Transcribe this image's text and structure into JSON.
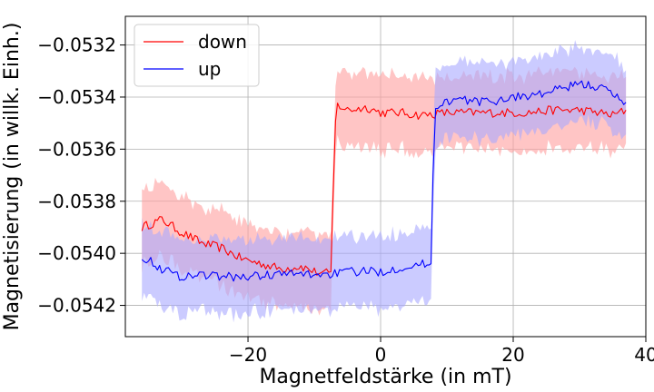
{
  "chart_data": {
    "type": "line",
    "xlabel": "Magnetfeldstärke (in  mT)",
    "ylabel": "Magnetisierung (in willk. Einh.)",
    "xlim": [
      -38.5,
      40
    ],
    "ylim": [
      -0.05432,
      -0.05309
    ],
    "x_ticks": [
      -20,
      0,
      20,
      40
    ],
    "x_tick_labels": [
      "−20",
      "0",
      "20",
      "40"
    ],
    "y_ticks": [
      -0.0542,
      -0.054,
      -0.0538,
      -0.0536,
      -0.0534,
      -0.0532
    ],
    "y_tick_labels": [
      "−0.0542",
      "−0.0540",
      "−0.0538",
      "−0.0536",
      "−0.0534",
      "−0.0532"
    ],
    "grid": true,
    "legend": {
      "position": "top-left",
      "entries": [
        "down",
        "up"
      ]
    },
    "series": [
      {
        "name": "down",
        "color": "#ff0000",
        "band_color": "#ff9f9f",
        "band_halfwidth": 0.00014,
        "points": [
          [
            -36,
            -0.0539
          ],
          [
            -33,
            -0.05387
          ],
          [
            -30,
            -0.05392
          ],
          [
            -27,
            -0.05396
          ],
          [
            -24,
            -0.05398
          ],
          [
            -21,
            -0.05402
          ],
          [
            -18,
            -0.05404
          ],
          [
            -15,
            -0.05406
          ],
          [
            -12,
            -0.05405
          ],
          [
            -10,
            -0.05407
          ],
          [
            -8.5,
            -0.05408
          ],
          [
            -7.5,
            -0.05407
          ],
          [
            -7.2,
            -0.0538
          ],
          [
            -6.8,
            -0.0535
          ],
          [
            -6.5,
            -0.05343
          ],
          [
            -5,
            -0.05345
          ],
          [
            -2,
            -0.05344
          ],
          [
            0,
            -0.05346
          ],
          [
            3,
            -0.05346
          ],
          [
            6,
            -0.05347
          ],
          [
            10,
            -0.05346
          ],
          [
            14,
            -0.05346
          ],
          [
            18,
            -0.05346
          ],
          [
            22,
            -0.05346
          ],
          [
            26,
            -0.05345
          ],
          [
            30,
            -0.05345
          ],
          [
            33,
            -0.05346
          ],
          [
            35,
            -0.05347
          ],
          [
            37,
            -0.05345
          ]
        ]
      },
      {
        "name": "up",
        "color": "#0000ff",
        "band_color": "#a8a8ff",
        "band_halfwidth": 0.00014,
        "points": [
          [
            -36,
            -0.05401
          ],
          [
            -33,
            -0.05406
          ],
          [
            -30,
            -0.05409
          ],
          [
            -27,
            -0.05408
          ],
          [
            -24,
            -0.05409
          ],
          [
            -20,
            -0.05409
          ],
          [
            -16,
            -0.05408
          ],
          [
            -12,
            -0.05408
          ],
          [
            -8,
            -0.05408
          ],
          [
            -4,
            -0.05407
          ],
          [
            0,
            -0.05407
          ],
          [
            4,
            -0.05405
          ],
          [
            7,
            -0.05404
          ],
          [
            7.6,
            -0.05404
          ],
          [
            7.9,
            -0.0537
          ],
          [
            8.3,
            -0.05345
          ],
          [
            9,
            -0.05342
          ],
          [
            12,
            -0.05341
          ],
          [
            16,
            -0.05342
          ],
          [
            20,
            -0.0534
          ],
          [
            24,
            -0.05339
          ],
          [
            27,
            -0.05337
          ],
          [
            30,
            -0.05335
          ],
          [
            33,
            -0.05336
          ],
          [
            35,
            -0.05339
          ],
          [
            37,
            -0.05342
          ]
        ]
      }
    ]
  }
}
